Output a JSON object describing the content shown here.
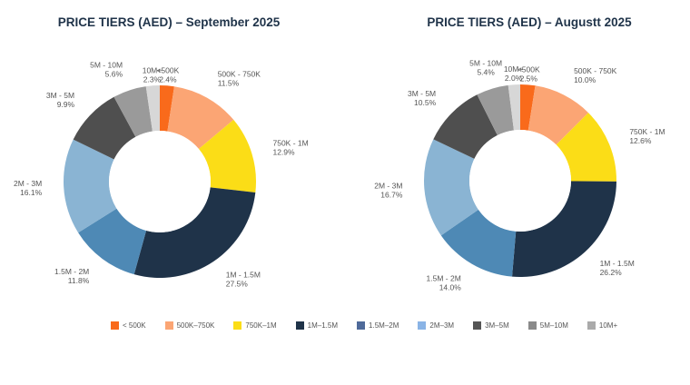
{
  "chart_data": [
    {
      "type": "pie",
      "donut": true,
      "title": "PRICE TIERS (AED) – September 2025",
      "categories": [
        "<500K",
        "500K - 750K",
        "750K - 1M",
        "1M - 1.5M",
        "1.5M - 2M",
        "2M - 3M",
        "3M - 5M",
        "5M - 10M",
        "10M+"
      ],
      "values": [
        2.4,
        11.5,
        12.9,
        27.5,
        11.8,
        16.1,
        9.9,
        5.6,
        2.3
      ],
      "value_labels": [
        "2.4%",
        "11.5%",
        "12.9%",
        "27.5%",
        "11.8%",
        "16.1%",
        "9.9%",
        "5.6%",
        "2.3%"
      ]
    },
    {
      "type": "pie",
      "donut": true,
      "title": "PRICE TIERS (AED) – Augustt 2025",
      "categories": [
        "<500K",
        "500K - 750K",
        "750K - 1M",
        "1M - 1.5M",
        "1.5M - 2M",
        "2M - 3M",
        "3M - 5M",
        "5M - 10M",
        "10M+"
      ],
      "values": [
        2.5,
        10.0,
        12.6,
        26.2,
        14.0,
        16.7,
        10.5,
        5.4,
        2.0
      ],
      "value_labels": [
        "2.5%",
        "10.0%",
        "12.6%",
        "26.2%",
        "14.0%",
        "16.7%",
        "10.5%",
        "5.4%",
        "2.0%"
      ]
    }
  ],
  "colors": [
    "#f96a1b",
    "#fba574",
    "#fbdd17",
    "#1f3349",
    "#4e89b5",
    "#8ab4d3",
    "#4f4f4f",
    "#9a9a9a",
    "#d7d7d7"
  ],
  "legend": {
    "position": "bottom",
    "items": [
      {
        "label": "< 500K",
        "color": "#f96a1b"
      },
      {
        "label": "500K–750K",
        "color": "#fba574"
      },
      {
        "label": "750K–1M",
        "color": "#fbdd17"
      },
      {
        "label": "1M–1.5M",
        "color": "#1f3349"
      },
      {
        "label": "1.5M–2M",
        "color": "#4f6a9a"
      },
      {
        "label": "2M–3M",
        "color": "#8ab4e6"
      },
      {
        "label": "3M–5M",
        "color": "#555555"
      },
      {
        "label": "5M–10M",
        "color": "#8a8a8a"
      },
      {
        "label": "10M+",
        "color": "#aaaaaa"
      }
    ]
  }
}
